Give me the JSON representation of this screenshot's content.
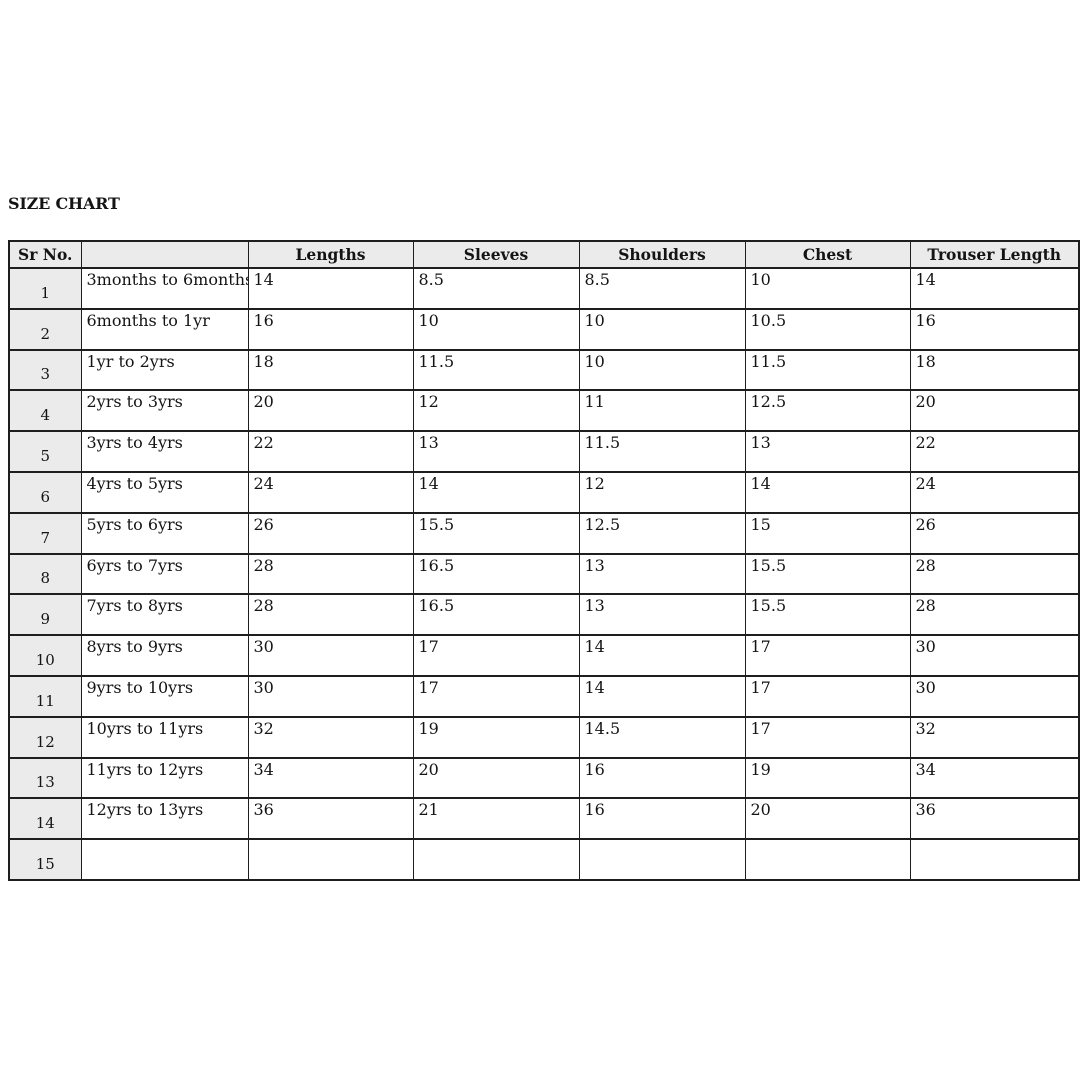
{
  "title": "SIZE CHART",
  "colors": {
    "page_bg": "#ffffff",
    "header_bg": "#ebebeb",
    "border": "#1e1e1e",
    "text": "#141414"
  },
  "table": {
    "column_keys": [
      "sr-no",
      "age-range",
      "lengths",
      "sleeves",
      "shoulders",
      "chest",
      "trouser-length"
    ],
    "headers": [
      "Sr No.",
      "",
      "Lengths",
      "Sleeves",
      "Shoulders",
      "Chest",
      "Trouser Length"
    ],
    "rows": [
      [
        "1",
        "3months to 6months",
        "14",
        "8.5",
        "8.5",
        "10",
        "14"
      ],
      [
        "2",
        "6months to 1yr",
        "16",
        "10",
        "10",
        "10.5",
        "16"
      ],
      [
        "3",
        "1yr to 2yrs",
        "18",
        "11.5",
        "10",
        "11.5",
        "18"
      ],
      [
        "4",
        "2yrs to 3yrs",
        "20",
        "12",
        "11",
        "12.5",
        "20"
      ],
      [
        "5",
        "3yrs to 4yrs",
        "22",
        "13",
        "11.5",
        "13",
        "22"
      ],
      [
        "6",
        "4yrs to 5yrs",
        "24",
        "14",
        "12",
        "14",
        "24"
      ],
      [
        "7",
        "5yrs to 6yrs",
        "26",
        "15.5",
        "12.5",
        "15",
        "26"
      ],
      [
        "8",
        "6yrs to 7yrs",
        "28",
        "16.5",
        "13",
        "15.5",
        "28"
      ],
      [
        "9",
        "7yrs to 8yrs",
        "28",
        "16.5",
        "13",
        "15.5",
        "28"
      ],
      [
        "10",
        "8yrs to 9yrs",
        "30",
        "17",
        "14",
        "17",
        "30"
      ],
      [
        "11",
        "9yrs to 10yrs",
        "30",
        "17",
        "14",
        "17",
        "30"
      ],
      [
        "12",
        "10yrs to 11yrs",
        "32",
        "19",
        "14.5",
        "17",
        "32"
      ],
      [
        "13",
        "11yrs to 12yrs",
        "34",
        "20",
        "16",
        "19",
        "34"
      ],
      [
        "14",
        "12yrs to 13yrs",
        "36",
        "21",
        "16",
        "20",
        "36"
      ],
      [
        "15",
        "",
        "",
        "",
        "",
        "",
        ""
      ]
    ]
  }
}
